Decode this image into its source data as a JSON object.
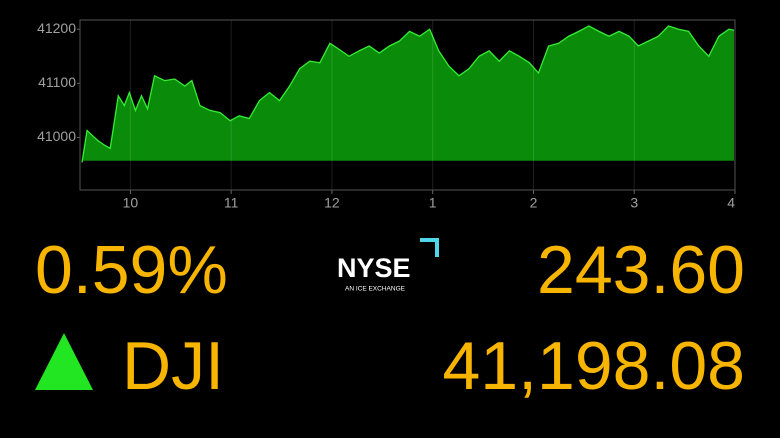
{
  "chart_data": {
    "type": "area",
    "x": [
      9.52,
      9.57,
      9.62,
      9.68,
      9.75,
      9.8,
      9.88,
      9.94,
      9.99,
      10.05,
      10.11,
      10.17,
      10.24,
      10.34,
      10.44,
      10.54,
      10.61,
      10.69,
      10.79,
      10.89,
      10.99,
      11.08,
      11.18,
      11.28,
      11.38,
      11.48,
      11.58,
      11.68,
      11.78,
      11.88,
      11.98,
      12.07,
      12.17,
      12.27,
      12.37,
      12.47,
      12.57,
      12.67,
      12.77,
      12.87,
      12.97,
      13.06,
      13.16,
      13.26,
      13.36,
      13.46,
      13.56,
      13.66,
      13.76,
      13.86,
      13.96,
      14.05,
      14.15,
      14.25,
      14.35,
      14.45,
      14.55,
      14.65,
      14.75,
      14.85,
      14.95,
      15.04,
      15.14,
      15.24,
      15.34,
      15.44,
      15.54,
      15.64,
      15.74,
      15.84,
      15.94,
      15.99
    ],
    "values": [
      40954,
      41013,
      41004,
      40994,
      40985,
      40980,
      41077,
      41059,
      41083,
      41050,
      41077,
      41053,
      41114,
      41105,
      41108,
      41095,
      41105,
      41059,
      41050,
      41046,
      41031,
      41040,
      41035,
      41068,
      41083,
      41068,
      41095,
      41127,
      41141,
      41138,
      41174,
      41163,
      41150,
      41160,
      41169,
      41156,
      41169,
      41178,
      41196,
      41187,
      41200,
      41160,
      41132,
      41114,
      41127,
      41150,
      41160,
      41141,
      41160,
      41150,
      41138,
      41119,
      41169,
      41174,
      41187,
      41196,
      41206,
      41196,
      41187,
      41196,
      41187,
      41169,
      41178,
      41187,
      41206,
      41200,
      41196,
      41169,
      41150,
      41187,
      41200,
      41198
    ],
    "baseline": 40956,
    "color": "#0a8c0a",
    "line_color": "#33ee33",
    "below_color": "#c00000",
    "xlim": [
      9.5,
      16
    ],
    "xticks": [
      10,
      11,
      12,
      {
        "value": 13,
        "label": "1"
      },
      {
        "value": 14,
        "label": "2"
      },
      {
        "value": 15,
        "label": "3"
      },
      {
        "value": 16,
        "label": "4"
      }
    ],
    "ylim": [
      40903,
      41217
    ],
    "yticks": [
      41000,
      41100,
      41200
    ],
    "grid": true
  },
  "quote": {
    "change_percent": "0.59%",
    "change_points": "243.60",
    "symbol": "DJI",
    "price": "41,198.08"
  },
  "logo": {
    "name": "NYSE",
    "tagline": "AN ICE EXCHANGE"
  }
}
